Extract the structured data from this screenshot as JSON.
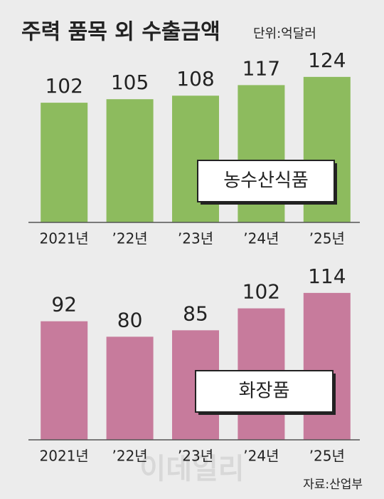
{
  "title": "주력 품목 외 수출금액",
  "unit": "단위:억달러",
  "source": "자료:산업부",
  "watermark": "이데일리",
  "chart_data": [
    {
      "type": "bar",
      "categories": [
        "2021년",
        "’22년",
        "’23년",
        "’24년",
        "’25년"
      ],
      "series": [
        {
          "name": "농수산식품",
          "color": "#8dbb5e",
          "values": [
            102,
            105,
            108,
            117,
            124
          ]
        }
      ],
      "ylim": [
        0,
        130
      ]
    },
    {
      "type": "bar",
      "categories": [
        "2021년",
        "’22년",
        "’23년",
        "’24년",
        "’25년"
      ],
      "series": [
        {
          "name": "화장품",
          "color": "#c77b9c",
          "values": [
            92,
            80,
            85,
            102,
            114
          ]
        }
      ],
      "ylim": [
        0,
        125
      ]
    }
  ]
}
